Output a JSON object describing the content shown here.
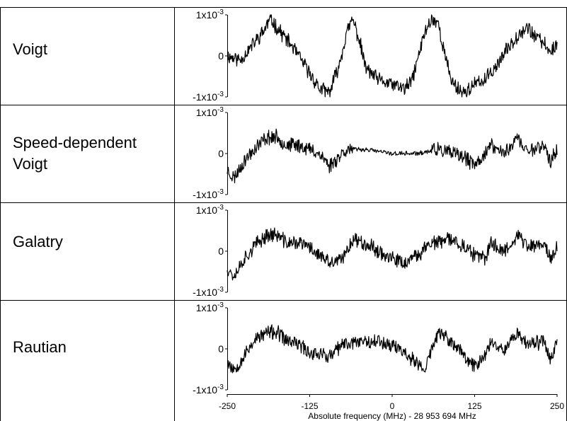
{
  "chart_data": {
    "type": "line",
    "xlabel": "Absolute frequency (MHz) - 28 953 694 MHz",
    "x_ticks": [
      -250,
      -125,
      0,
      125,
      250
    ],
    "ylim": [
      -0.001,
      0.001
    ],
    "y_tick_labels": [
      "1x10",
      "0",
      "-1x10"
    ],
    "y_tick_exponent": "-3",
    "grid": false,
    "panels": [
      {
        "label_lines": [
          "Voigt"
        ],
        "noise": 0.00016,
        "seed": 11,
        "x": [
          -250,
          -230,
          -210,
          -195,
          -185,
          -170,
          -150,
          -130,
          -110,
          -95,
          -80,
          -70,
          -60,
          -50,
          -40,
          -20,
          0,
          20,
          30,
          40,
          50,
          60,
          70,
          80,
          90,
          100,
          110,
          125,
          140,
          160,
          180,
          195,
          205,
          215,
          230,
          240,
          250
        ],
        "y": [
          0.0,
          -0.0001,
          0.0003,
          0.0006,
          0.0009,
          0.0006,
          0.0002,
          -0.0003,
          -0.0008,
          -0.0009,
          -0.0002,
          0.0005,
          0.0009,
          0.0004,
          -0.0003,
          -0.0006,
          -0.0007,
          -0.0008,
          -0.0006,
          0.0,
          0.0006,
          0.0009,
          0.0008,
          0.0,
          -0.0006,
          -0.0008,
          -0.0009,
          -0.0007,
          -0.0006,
          -0.0002,
          0.0003,
          0.0006,
          0.0007,
          0.0005,
          0.0003,
          0.0001,
          0.0003
        ]
      },
      {
        "label_lines": [
          "Speed-dependent",
          "Voigt"
        ],
        "noise": 0.00016,
        "seed": 23,
        "x": [
          -250,
          -240,
          -225,
          -210,
          -190,
          -175,
          -160,
          -140,
          -125,
          -110,
          -95,
          -70,
          -40,
          0,
          40,
          70,
          90,
          110,
          125,
          140,
          150,
          170,
          190,
          200,
          210,
          230,
          240,
          250
        ],
        "y": [
          -0.0004,
          -0.0006,
          -0.0002,
          0.0001,
          0.0004,
          0.0004,
          0.0002,
          0.0002,
          0.0001,
          0.0,
          -0.0003,
          0.0001,
          0.0001,
          0.0,
          0.0,
          0.0001,
          0.0,
          -0.0001,
          -0.0003,
          0.0,
          0.0002,
          0.0,
          0.0004,
          0.0001,
          0.0001,
          0.0002,
          -0.0002,
          0.0001
        ]
      },
      {
        "label_lines": [
          "Galatry"
        ],
        "noise": 0.00016,
        "seed": 37,
        "x": [
          -250,
          -240,
          -225,
          -210,
          -190,
          -175,
          -160,
          -140,
          -125,
          -110,
          -95,
          -75,
          -60,
          -40,
          -20,
          0,
          20,
          40,
          55,
          70,
          90,
          110,
          125,
          140,
          150,
          170,
          190,
          200,
          210,
          230,
          240,
          250
        ],
        "y": [
          -0.0004,
          -0.0006,
          -0.0002,
          0.0001,
          0.0004,
          0.0004,
          0.0002,
          0.0002,
          0.0001,
          -0.0001,
          -0.0003,
          -0.0002,
          0.0003,
          0.0002,
          0.0,
          -0.0002,
          -0.0003,
          -0.0001,
          0.0002,
          0.0002,
          0.0003,
          0.0001,
          -0.0001,
          -0.0002,
          0.0002,
          0.0,
          0.0004,
          0.0002,
          0.0001,
          0.0002,
          -0.0002,
          0.0001
        ]
      },
      {
        "label_lines": [
          "Rautian"
        ],
        "noise": 0.00016,
        "seed": 53,
        "x": [
          -250,
          -240,
          -225,
          -210,
          -190,
          -175,
          -160,
          -140,
          -125,
          -110,
          -95,
          -75,
          -50,
          -25,
          0,
          20,
          40,
          50,
          60,
          70,
          80,
          100,
          115,
          125,
          140,
          150,
          170,
          190,
          200,
          210,
          230,
          240,
          250
        ],
        "y": [
          -0.0003,
          -0.0005,
          -0.0002,
          0.0002,
          0.0004,
          0.0004,
          0.0002,
          0.0001,
          -0.0001,
          -0.0001,
          -0.0002,
          0.0001,
          0.0002,
          0.0002,
          0.0001,
          -0.0001,
          -0.0004,
          -0.0005,
          0.0,
          0.0004,
          0.0003,
          0.0,
          -0.0003,
          -0.0004,
          -0.0002,
          0.0002,
          0.0,
          0.0004,
          0.0002,
          0.0001,
          0.0002,
          -0.0002,
          0.0001
        ]
      }
    ]
  }
}
